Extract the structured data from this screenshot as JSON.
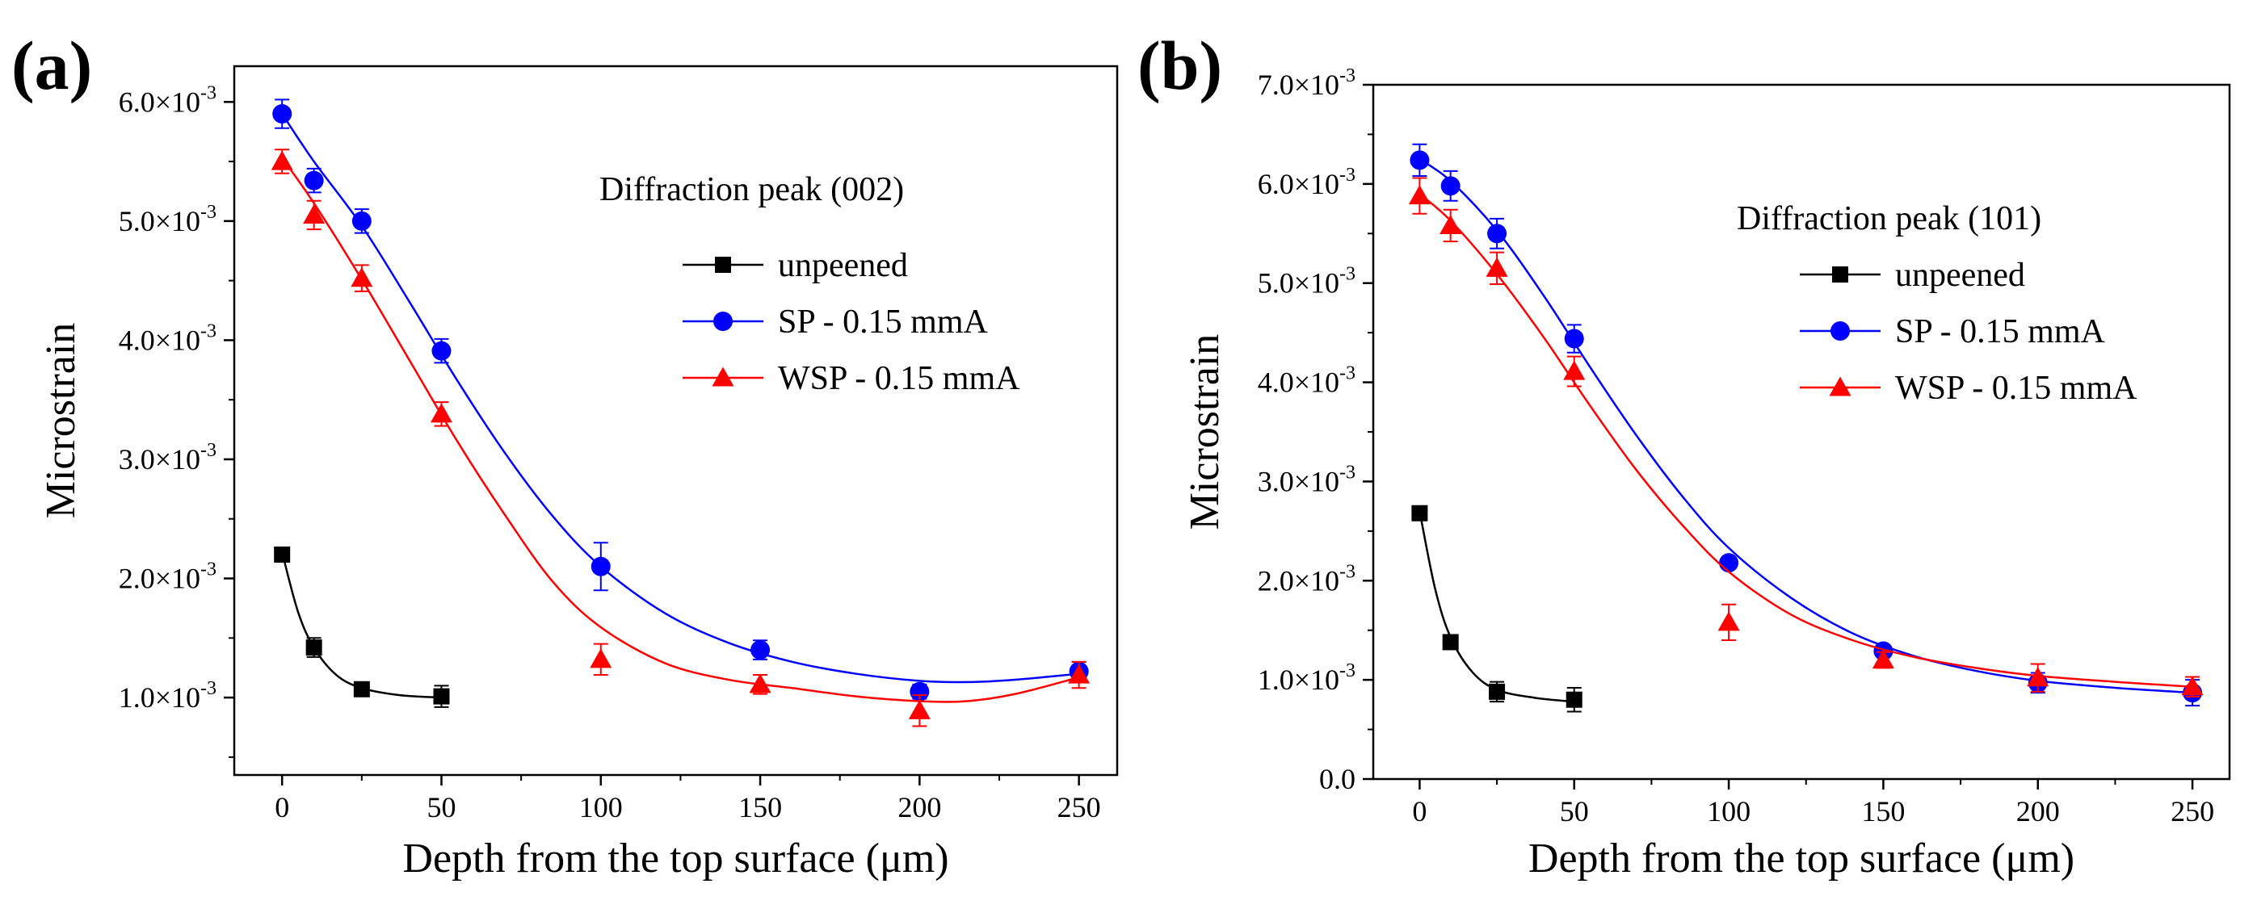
{
  "chart_data": [
    {
      "type": "line",
      "panel_label": "(a)",
      "annotation": "Diffraction peak (002)",
      "xlabel": "Depth from the top surface (μm)",
      "ylabel": "Microstrain",
      "xlim": [
        -15,
        262
      ],
      "ylim": [
        0.00035,
        0.0063
      ],
      "xticks": [
        0,
        50,
        100,
        150,
        200,
        250
      ],
      "xtick_labels": [
        "0",
        "50",
        "100",
        "150",
        "200",
        "250"
      ],
      "yticks": [
        0.001,
        0.002,
        0.003,
        0.004,
        0.005,
        0.006
      ],
      "ytick_labels": [
        {
          "mant": "1.0×10",
          "exp": "-3"
        },
        {
          "mant": "2.0×10",
          "exp": "-3"
        },
        {
          "mant": "3.0×10",
          "exp": "-3"
        },
        {
          "mant": "4.0×10",
          "exp": "-3"
        },
        {
          "mant": "5.0×10",
          "exp": "-3"
        },
        {
          "mant": "6.0×10",
          "exp": "-3"
        }
      ],
      "legend": [
        "unpeened",
        "SP - 0.15 mmA",
        "WSP - 0.15 mmA"
      ],
      "series": [
        {
          "name": "unpeened",
          "color": "#000000",
          "marker": "square",
          "x": [
            0,
            10,
            25,
            50
          ],
          "y": [
            0.0022,
            0.00142,
            0.00107,
            0.00101
          ],
          "err": [
            4e-05,
            8e-05,
            4e-05,
            9e-05
          ],
          "fit": [
            [
              0,
              0.00222
            ],
            [
              5,
              0.00172
            ],
            [
              10,
              0.00142
            ],
            [
              17,
              0.00119
            ],
            [
              25,
              0.00108
            ],
            [
              37,
              0.00102
            ],
            [
              50,
              0.001
            ]
          ]
        },
        {
          "name": "SP - 0.15 mmA",
          "color": "#0000ff",
          "marker": "circle",
          "x": [
            0,
            10,
            25,
            50,
            100,
            150,
            200,
            250
          ],
          "y": [
            0.0059,
            0.00534,
            0.005,
            0.00391,
            0.0021,
            0.0014,
            0.00105,
            0.00122
          ],
          "err": [
            0.00012,
            0.0001,
            0.0001,
            0.0001,
            0.0002,
            8e-05,
            6e-05,
            8e-05
          ],
          "fit": [
            [
              0,
              0.0059
            ],
            [
              10,
              0.0055
            ],
            [
              25,
              0.00496
            ],
            [
              40,
              0.00432
            ],
            [
              55,
              0.00366
            ],
            [
              70,
              0.00305
            ],
            [
              85,
              0.00252
            ],
            [
              100,
              0.0021
            ],
            [
              120,
              0.00171
            ],
            [
              140,
              0.00146
            ],
            [
              160,
              0.0013
            ],
            [
              180,
              0.0012
            ],
            [
              200,
              0.00114
            ],
            [
              215,
              0.00113
            ],
            [
              230,
              0.00115
            ],
            [
              250,
              0.0012
            ]
          ]
        },
        {
          "name": "WSP - 0.15 mmA",
          "color": "#ff0000",
          "marker": "triangle",
          "x": [
            0,
            10,
            25,
            50,
            100,
            150,
            200,
            250
          ],
          "y": [
            0.0055,
            0.00505,
            0.00452,
            0.00338,
            0.00132,
            0.00111,
            0.00089,
            0.00119
          ],
          "err": [
            0.0001,
            0.00012,
            0.00011,
            0.0001,
            0.00013,
            8e-05,
            0.00013,
            0.00011
          ],
          "fit": [
            [
              0,
              0.00553
            ],
            [
              10,
              0.00515
            ],
            [
              25,
              0.00451
            ],
            [
              40,
              0.00383
            ],
            [
              55,
              0.00315
            ],
            [
              70,
              0.00253
            ],
            [
              85,
              0.00197
            ],
            [
              100,
              0.00159
            ],
            [
              120,
              0.00129
            ],
            [
              140,
              0.00115
            ],
            [
              160,
              0.00108
            ],
            [
              180,
              0.00101
            ],
            [
              200,
              0.00097
            ],
            [
              215,
              0.00097
            ],
            [
              230,
              0.00103
            ],
            [
              250,
              0.00117
            ]
          ]
        }
      ]
    },
    {
      "type": "line",
      "panel_label": "(b)",
      "annotation": "Diffraction peak (101)",
      "xlabel": "Depth from the top surface (μm)",
      "ylabel": "Microstrain",
      "xlim": [
        -15,
        262
      ],
      "ylim": [
        0,
        0.007
      ],
      "xticks": [
        0,
        50,
        100,
        150,
        200,
        250
      ],
      "xtick_labels": [
        "0",
        "50",
        "100",
        "150",
        "200",
        "250"
      ],
      "yticks": [
        0,
        0.001,
        0.002,
        0.003,
        0.004,
        0.005,
        0.006,
        0.007
      ],
      "ytick_labels": [
        {
          "mant": "0.0",
          "exp": ""
        },
        {
          "mant": "1.0×10",
          "exp": "-3"
        },
        {
          "mant": "2.0×10",
          "exp": "-3"
        },
        {
          "mant": "3.0×10",
          "exp": "-3"
        },
        {
          "mant": "4.0×10",
          "exp": "-3"
        },
        {
          "mant": "5.0×10",
          "exp": "-3"
        },
        {
          "mant": "6.0×10",
          "exp": "-3"
        },
        {
          "mant": "7.0×10",
          "exp": "-3"
        }
      ],
      "legend": [
        "unpeened",
        "SP - 0.15 mmA",
        "WSP - 0.15 mmA"
      ],
      "series": [
        {
          "name": "unpeened",
          "color": "#000000",
          "marker": "square",
          "x": [
            0,
            10,
            25,
            50
          ],
          "y": [
            0.00268,
            0.00138,
            0.00088,
            0.0008
          ],
          "err": [
            4e-05,
            5e-05,
            0.0001,
            0.00012
          ],
          "fit": [
            [
              0,
              0.0027
            ],
            [
              5,
              0.00192
            ],
            [
              10,
              0.00143
            ],
            [
              17,
              0.00108
            ],
            [
              25,
              0.0009
            ],
            [
              37,
              0.00082
            ],
            [
              50,
              0.00078
            ]
          ]
        },
        {
          "name": "SP - 0.15 mmA",
          "color": "#0000ff",
          "marker": "circle",
          "x": [
            0,
            10,
            25,
            50,
            100,
            150,
            200,
            250
          ],
          "y": [
            0.00624,
            0.00598,
            0.0055,
            0.00444,
            0.00218,
            0.00129,
            0.00097,
            0.00087
          ],
          "err": [
            0.00016,
            0.00015,
            0.00015,
            0.00014,
            5e-05,
            5e-05,
            0.0001,
            0.00013
          ],
          "fit": [
            [
              0,
              0.00625
            ],
            [
              10,
              0.00603
            ],
            [
              25,
              0.00553
            ],
            [
              40,
              0.00488
            ],
            [
              55,
              0.00416
            ],
            [
              70,
              0.00347
            ],
            [
              85,
              0.00285
            ],
            [
              100,
              0.00233
            ],
            [
              120,
              0.00183
            ],
            [
              140,
              0.00147
            ],
            [
              160,
              0.00124
            ],
            [
              180,
              0.00109
            ],
            [
              200,
              0.00099
            ],
            [
              225,
              0.00092
            ],
            [
              250,
              0.00087
            ]
          ]
        },
        {
          "name": "WSP - 0.15 mmA",
          "color": "#ff0000",
          "marker": "triangle",
          "x": [
            0,
            10,
            25,
            50,
            100,
            150,
            200,
            250
          ],
          "y": [
            0.00588,
            0.00558,
            0.00515,
            0.00411,
            0.00158,
            0.0012,
            0.00102,
            0.00093
          ],
          "err": [
            0.00018,
            0.00016,
            0.00016,
            0.00015,
            0.00018,
            8e-05,
            0.00014,
            0.0001
          ],
          "fit": [
            [
              0,
              0.0059
            ],
            [
              10,
              0.00563
            ],
            [
              25,
              0.00509
            ],
            [
              40,
              0.00446
            ],
            [
              55,
              0.00377
            ],
            [
              70,
              0.00312
            ],
            [
              85,
              0.00256
            ],
            [
              100,
              0.00209
            ],
            [
              120,
              0.00166
            ],
            [
              140,
              0.0014
            ],
            [
              160,
              0.00123
            ],
            [
              180,
              0.00112
            ],
            [
              200,
              0.00104
            ],
            [
              225,
              0.00098
            ],
            [
              250,
              0.00093
            ]
          ]
        }
      ]
    }
  ]
}
